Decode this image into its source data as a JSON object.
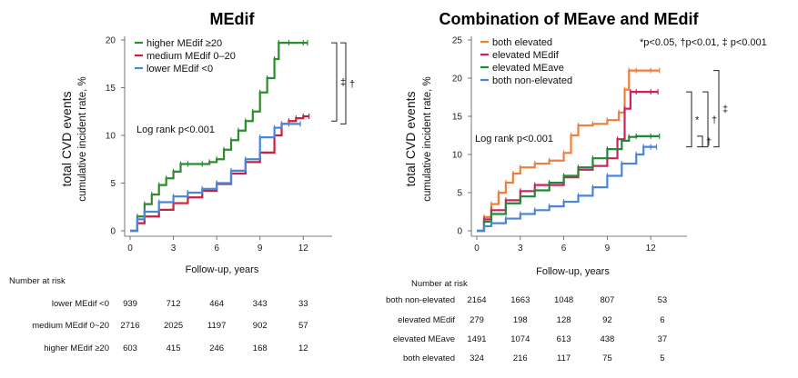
{
  "significance_note": "*p<0.05, †p<0.01, ‡ p<0.001",
  "chart_data": [
    {
      "type": "line",
      "title": "MEdif",
      "ylabel_main": "total CVD events",
      "ylabel_sub": "cumulative incident rate, %",
      "xlabel": "Follow-up, years",
      "xlim": [
        0,
        14
      ],
      "ylim": [
        0,
        20
      ],
      "xticks": [
        0,
        3,
        6,
        9,
        12
      ],
      "yticks": [
        0,
        5,
        10,
        15,
        20
      ],
      "annotation": "Log rank p<0.001",
      "legend_position": "top-left",
      "brackets": [
        "‡",
        "†"
      ],
      "series": [
        {
          "name": "higher MEdif ≥20",
          "color": "#2e8b2e",
          "points": [
            [
              0,
              0
            ],
            [
              0.5,
              1.5
            ],
            [
              1,
              2.8
            ],
            [
              1.5,
              3.8
            ],
            [
              2,
              4.8
            ],
            [
              2.5,
              5.5
            ],
            [
              3,
              6.2
            ],
            [
              3.5,
              7.0
            ],
            [
              4,
              7.0
            ],
            [
              5,
              7.0
            ],
            [
              5.5,
              7.2
            ],
            [
              6,
              7.5
            ],
            [
              6.5,
              8.5
            ],
            [
              7,
              9.5
            ],
            [
              7.5,
              10.5
            ],
            [
              8,
              11.5
            ],
            [
              8.5,
              12.5
            ],
            [
              9,
              14.5
            ],
            [
              9.5,
              16
            ],
            [
              10,
              18
            ],
            [
              10.3,
              19.7
            ],
            [
              11,
              19.7
            ],
            [
              12,
              19.7
            ],
            [
              12.3,
              19.7
            ]
          ]
        },
        {
          "name": "medium MEdif 0–20",
          "color": "#cc1f3c",
          "points": [
            [
              0,
              0
            ],
            [
              0.5,
              0.8
            ],
            [
              1,
              1.5
            ],
            [
              2,
              2.2
            ],
            [
              3,
              2.9
            ],
            [
              4,
              3.5
            ],
            [
              5,
              4.2
            ],
            [
              6,
              4.9
            ],
            [
              7,
              6.0
            ],
            [
              8,
              7.2
            ],
            [
              9,
              8.2
            ],
            [
              10,
              10.0
            ],
            [
              10.5,
              11.2
            ],
            [
              11,
              11.5
            ],
            [
              11.5,
              11.8
            ],
            [
              12,
              12.0
            ],
            [
              12.4,
              12.0
            ]
          ]
        },
        {
          "name": "lower MEdif <0",
          "color": "#4a86d6",
          "points": [
            [
              0,
              0
            ],
            [
              0.5,
              1.2
            ],
            [
              1,
              2.0
            ],
            [
              2,
              3.0
            ],
            [
              3,
              3.6
            ],
            [
              4,
              4.0
            ],
            [
              5,
              4.4
            ],
            [
              6,
              5.0
            ],
            [
              7,
              6.3
            ],
            [
              8,
              7.5
            ],
            [
              9,
              9.8
            ],
            [
              10,
              10.8
            ],
            [
              10.5,
              11.2
            ],
            [
              11,
              11.2
            ],
            [
              11.8,
              11.2
            ]
          ]
        }
      ],
      "risk_table": {
        "header": "Number at risk",
        "rows": [
          {
            "label": "lower MEdif <0",
            "values": [
              "939",
              "712",
              "464",
              "343",
              "33"
            ]
          },
          {
            "label": "medium MEdif 0~20",
            "values": [
              "2716",
              "2025",
              "1197",
              "902",
              "57"
            ]
          },
          {
            "label": "higher MEdif ≥20",
            "values": [
              "603",
              "415",
              "246",
              "168",
              "12"
            ]
          }
        ]
      }
    },
    {
      "type": "line",
      "title": "Combination of MEave and MEdif",
      "ylabel_main": "total CVD events",
      "ylabel_sub": "cumulative incident rate, %",
      "xlabel": "Follow-up, years",
      "xlim": [
        0,
        14.5
      ],
      "ylim": [
        0,
        25
      ],
      "xticks": [
        0,
        3,
        6,
        9,
        12
      ],
      "yticks": [
        0,
        5,
        10,
        15,
        20,
        25
      ],
      "annotation": "Log rank p<0.001",
      "legend_position": "top-left",
      "brackets": [
        "*",
        "†",
        "‡",
        "†"
      ],
      "series": [
        {
          "name": "both elevated",
          "color": "#f07f3a",
          "points": [
            [
              0,
              0
            ],
            [
              0.5,
              1.8
            ],
            [
              1,
              3.5
            ],
            [
              1.5,
              5.0
            ],
            [
              2,
              6.3
            ],
            [
              2.5,
              7.5
            ],
            [
              3,
              8.3
            ],
            [
              4,
              8.8
            ],
            [
              5,
              9.2
            ],
            [
              6,
              10.2
            ],
            [
              6.5,
              12.5
            ],
            [
              7,
              13.8
            ],
            [
              8,
              14.0
            ],
            [
              9,
              14.5
            ],
            [
              9.8,
              15.5
            ],
            [
              10.2,
              18.5
            ],
            [
              10.5,
              21.0
            ],
            [
              11,
              21.0
            ],
            [
              12,
              21.0
            ],
            [
              12.6,
              21.0
            ]
          ]
        },
        {
          "name": "elevated MEdif",
          "color": "#d0205a",
          "points": [
            [
              0,
              0
            ],
            [
              0.5,
              1.5
            ],
            [
              1,
              2.7
            ],
            [
              2,
              4.0
            ],
            [
              3,
              5.2
            ],
            [
              4,
              6.0
            ],
            [
              5,
              6.0
            ],
            [
              6,
              7.0
            ],
            [
              7,
              8.0
            ],
            [
              8,
              8.5
            ],
            [
              9,
              9.5
            ],
            [
              9.7,
              12.0
            ],
            [
              10.2,
              16.0
            ],
            [
              10.6,
              18.2
            ],
            [
              11,
              18.2
            ],
            [
              12,
              18.2
            ],
            [
              12.5,
              18.2
            ]
          ]
        },
        {
          "name": "elevated MEave",
          "color": "#1e8a35",
          "points": [
            [
              0,
              0
            ],
            [
              0.5,
              1.2
            ],
            [
              1,
              2.2
            ],
            [
              2,
              3.6
            ],
            [
              3,
              4.5
            ],
            [
              4,
              5.3
            ],
            [
              5,
              6.3
            ],
            [
              6,
              7.2
            ],
            [
              7,
              8.3
            ],
            [
              8,
              9.5
            ],
            [
              9,
              10.7
            ],
            [
              10,
              11.8
            ],
            [
              10.5,
              12.3
            ],
            [
              11,
              12.4
            ],
            [
              12,
              12.4
            ],
            [
              12.6,
              12.4
            ]
          ]
        },
        {
          "name": "both non-elevated",
          "color": "#4a86d6",
          "points": [
            [
              0,
              0
            ],
            [
              0.5,
              0.6
            ],
            [
              1,
              1.0
            ],
            [
              2,
              1.6
            ],
            [
              3,
              2.2
            ],
            [
              4,
              2.7
            ],
            [
              5,
              3.2
            ],
            [
              6,
              3.8
            ],
            [
              7,
              4.6
            ],
            [
              8,
              5.7
            ],
            [
              9,
              7.2
            ],
            [
              10,
              8.8
            ],
            [
              11,
              10.0
            ],
            [
              11.5,
              11.0
            ],
            [
              12,
              11.0
            ],
            [
              12.4,
              11.0
            ]
          ]
        }
      ],
      "risk_table": {
        "header": "Number at risk",
        "rows": [
          {
            "label": "both non-elevated",
            "values": [
              "2164",
              "1663",
              "1048",
              "807",
              "53"
            ]
          },
          {
            "label": "elevated MEdif",
            "values": [
              "279",
              "198",
              "128",
              "92",
              "6"
            ]
          },
          {
            "label": "elevated MEave",
            "values": [
              "1491",
              "1074",
              "613",
              "438",
              "37"
            ]
          },
          {
            "label": "both elevated",
            "values": [
              "324",
              "216",
              "117",
              "75",
              "5"
            ]
          }
        ]
      }
    }
  ]
}
